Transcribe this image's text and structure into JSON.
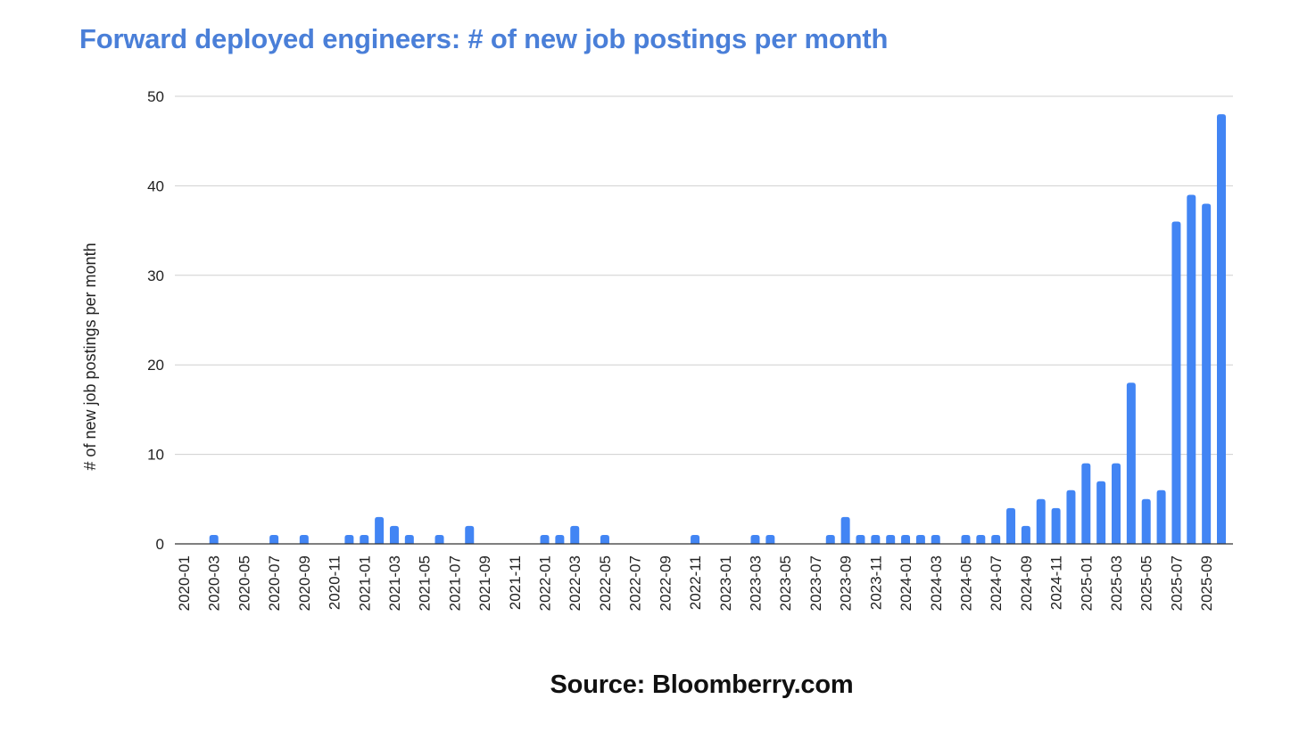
{
  "chart_data": {
    "type": "bar",
    "title": "Forward deployed engineers: # of new job postings per month",
    "xlabel": "",
    "ylabel": "# of new job postings per month",
    "ylim": [
      0,
      50
    ],
    "yticks": [
      0,
      10,
      20,
      30,
      40,
      50
    ],
    "grid": true,
    "legend": "none",
    "bar_color": "#4285f4",
    "title_color": "#4a7fd8",
    "categories": [
      "2020-01",
      "2020-02",
      "2020-03",
      "2020-04",
      "2020-05",
      "2020-06",
      "2020-07",
      "2020-08",
      "2020-09",
      "2020-10",
      "2020-11",
      "2020-12",
      "2021-01",
      "2021-02",
      "2021-03",
      "2021-04",
      "2021-05",
      "2021-06",
      "2021-07",
      "2021-08",
      "2021-09",
      "2021-10",
      "2021-11",
      "2021-12",
      "2022-01",
      "2022-02",
      "2022-03",
      "2022-04",
      "2022-05",
      "2022-06",
      "2022-07",
      "2022-08",
      "2022-09",
      "2022-10",
      "2022-11",
      "2022-12",
      "2023-01",
      "2023-02",
      "2023-03",
      "2023-04",
      "2023-05",
      "2023-06",
      "2023-07",
      "2023-08",
      "2023-09",
      "2023-10",
      "2023-11",
      "2023-12",
      "2024-01",
      "2024-02",
      "2024-03",
      "2024-04",
      "2024-05",
      "2024-06",
      "2024-07",
      "2024-08",
      "2024-09",
      "2024-10",
      "2024-11",
      "2024-12",
      "2025-01",
      "2025-02",
      "2025-03",
      "2025-04",
      "2025-05",
      "2025-06",
      "2025-07",
      "2025-08",
      "2025-09",
      "2025-10"
    ],
    "tick_labels": [
      "2020-01",
      "2020-03",
      "2020-05",
      "2020-07",
      "2020-09",
      "2020-11",
      "2021-01",
      "2021-03",
      "2021-05",
      "2021-07",
      "2021-09",
      "2021-11",
      "2022-01",
      "2022-03",
      "2022-05",
      "2022-07",
      "2022-09",
      "2022-11",
      "2023-01",
      "2023-03",
      "2023-05",
      "2023-07",
      "2023-09",
      "2023-11",
      "2024-01",
      "2024-03",
      "2024-05",
      "2024-07",
      "2024-09",
      "2024-11",
      "2025-01",
      "2025-03",
      "2025-05",
      "2025-07",
      "2025-09"
    ],
    "values": [
      0,
      0,
      1,
      0,
      0,
      0,
      1,
      0,
      1,
      0,
      0,
      1,
      1,
      3,
      2,
      1,
      0,
      1,
      0,
      2,
      0,
      0,
      0,
      0,
      1,
      1,
      2,
      0,
      1,
      0,
      0,
      0,
      0,
      0,
      1,
      0,
      0,
      0,
      1,
      1,
      0,
      0,
      0,
      1,
      3,
      1,
      1,
      1,
      1,
      1,
      1,
      0,
      1,
      1,
      1,
      4,
      2,
      5,
      4,
      6,
      9,
      7,
      9,
      18,
      5,
      6,
      36,
      39,
      38,
      48
    ]
  },
  "source": "Source: Bloomberry.com"
}
